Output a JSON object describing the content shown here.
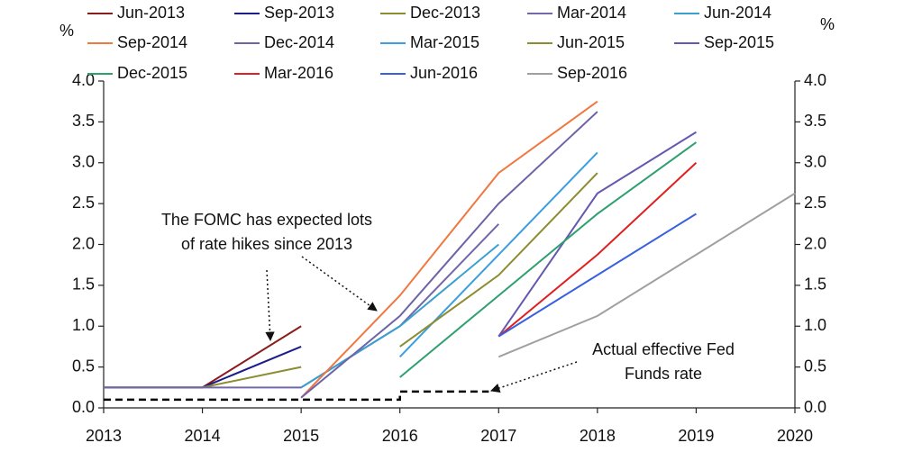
{
  "chart_data": {
    "type": "line",
    "x": [
      2013,
      2014,
      2015,
      2016,
      2017,
      2018,
      2019,
      2020
    ],
    "xlim": [
      2013,
      2020
    ],
    "xticks": [
      2013,
      2014,
      2015,
      2016,
      2017,
      2018,
      2019,
      2020
    ],
    "ylim": [
      0,
      4
    ],
    "y2lim": [
      0,
      4
    ],
    "yticks": [
      {
        "value": 0,
        "label": "0.0"
      },
      {
        "value": 0.5,
        "label": "0.5"
      },
      {
        "value": 1,
        "label": "1.0"
      },
      {
        "value": 1.5,
        "label": "1.5"
      },
      {
        "value": 2,
        "label": "2.0"
      },
      {
        "value": 2.5,
        "label": "2.5"
      },
      {
        "value": 3,
        "label": "3.0"
      },
      {
        "value": 3.5,
        "label": "3.5"
      },
      {
        "value": 4,
        "label": "4.0"
      }
    ],
    "y2ticks": [
      {
        "value": 0,
        "label": "0.0"
      },
      {
        "value": 0.5,
        "label": "0.5"
      },
      {
        "value": 1,
        "label": "1.0"
      },
      {
        "value": 1.5,
        "label": "1.5"
      },
      {
        "value": 2,
        "label": "2.0"
      },
      {
        "value": 2.5,
        "label": "2.5"
      },
      {
        "value": 3,
        "label": "3.0"
      },
      {
        "value": 3.5,
        "label": "3.5"
      },
      {
        "value": 4,
        "label": "4.0"
      }
    ],
    "ylabel": "%",
    "y2label": "%",
    "grid": false,
    "series": [
      {
        "name": "Jun-2013",
        "color": "#8b1c1c",
        "values": [
          0.25,
          0.25,
          1.0,
          null,
          null,
          null,
          null,
          null
        ]
      },
      {
        "name": "Sep-2013",
        "color": "#1c1c8b",
        "values": [
          0.25,
          0.25,
          0.75,
          null,
          null,
          null,
          null,
          null
        ]
      },
      {
        "name": "Dec-2013",
        "color": "#8c8c30",
        "values": [
          0.25,
          0.25,
          0.5,
          null,
          null,
          null,
          null,
          null
        ]
      },
      {
        "name": "Mar-2014",
        "color": "#7068a8",
        "values": [
          0.25,
          0.25,
          0.25,
          1.0,
          2.25,
          null,
          null,
          null
        ]
      },
      {
        "name": "Jun-2014",
        "color": "#3aa0d0",
        "values": [
          null,
          null,
          0.25,
          1.0,
          2.0,
          null,
          null,
          null
        ]
      },
      {
        "name": "Sep-2014",
        "color": "#f07840",
        "values": [
          null,
          null,
          0.125,
          1.375,
          2.875,
          3.75,
          null,
          null
        ]
      },
      {
        "name": "Dec-2014",
        "color": "#6c64a8",
        "values": [
          null,
          null,
          0.125,
          1.125,
          2.5,
          3.625,
          null,
          null
        ]
      },
      {
        "name": "Mar-2015",
        "color": "#3a9ee0",
        "values": [
          null,
          null,
          null,
          0.625,
          1.875,
          3.125,
          null,
          null
        ]
      },
      {
        "name": "Jun-2015",
        "color": "#8c8c30",
        "values": [
          null,
          null,
          null,
          0.75,
          1.625,
          2.875,
          null,
          null
        ]
      },
      {
        "name": "Sep-2015",
        "color": "#6458b0",
        "values": [
          null,
          null,
          null,
          null,
          0.875,
          2.625,
          3.375,
          null
        ]
      },
      {
        "name": "Dec-2015",
        "color": "#2ea070",
        "values": [
          null,
          null,
          null,
          0.375,
          1.375,
          2.375,
          3.25,
          null
        ]
      },
      {
        "name": "Mar-2016",
        "color": "#e02020",
        "values": [
          null,
          null,
          null,
          null,
          0.875,
          1.875,
          3.0,
          null
        ]
      },
      {
        "name": "Jun-2016",
        "color": "#3a60e0",
        "values": [
          null,
          null,
          null,
          null,
          0.875,
          1.625,
          2.375,
          null
        ]
      },
      {
        "name": "Sep-2016",
        "color": "#a0a0a0",
        "values": [
          null,
          null,
          null,
          null,
          0.625,
          1.125,
          1.875,
          2.625
        ]
      }
    ],
    "actual": {
      "color": "#000000",
      "x": [
        2013,
        2016,
        2016,
        2016.9
      ],
      "values": [
        0.1,
        0.1,
        0.2,
        0.2
      ]
    },
    "annotations": [
      {
        "lines": [
          "The FOMC has expected lots",
          "of rate hikes since 2013"
        ]
      },
      {
        "lines": [
          "Actual effective Fed",
          "Funds rate"
        ]
      }
    ]
  }
}
